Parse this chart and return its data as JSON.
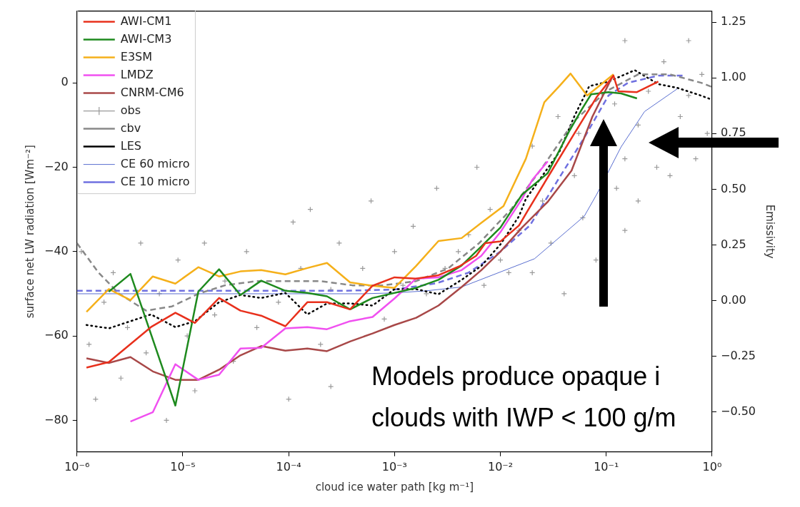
{
  "chart_data": {
    "type": "line",
    "xlabel": "cloud ice water path [kg m⁻¹]",
    "ylabel": "surface net LW radiation [Wm⁻²]",
    "y2label": "Emissivity",
    "log": "x",
    "grid": false,
    "legend": "top left",
    "xlim": [
      1e-06,
      1
    ],
    "xticks": [
      {
        "value": 1e-06,
        "label": "10⁻⁶"
      },
      {
        "value": 1e-05,
        "label": "10⁻⁵"
      },
      {
        "value": 0.0001,
        "label": "10⁻⁴"
      },
      {
        "value": 0.001,
        "label": "10⁻³"
      },
      {
        "value": 0.01,
        "label": "10⁻²"
      },
      {
        "value": 0.1,
        "label": "10⁻¹"
      },
      {
        "value": 1,
        "label": "10⁰"
      }
    ],
    "ylim": [
      -87.5,
      17
    ],
    "yticks": [
      {
        "value": -80,
        "label": "−80"
      },
      {
        "value": -60,
        "label": "−60"
      },
      {
        "value": -40,
        "label": "−40"
      },
      {
        "value": -20,
        "label": "−20"
      },
      0
    ],
    "y2lim": [
      -0.68,
      1.3
    ],
    "y2ticks": [
      {
        "value": -0.5,
        "label": "−0.50"
      },
      {
        "value": -0.25,
        "label": "−0.25"
      },
      {
        "value": 0,
        "label": "0.00"
      },
      {
        "value": 0.25,
        "label": "0.25"
      },
      {
        "value": 0.5,
        "label": "0.50"
      },
      {
        "value": 0.75,
        "label": "0.75"
      },
      {
        "value": 1,
        "label": "1.00"
      },
      {
        "value": 1.25,
        "label": "1.25"
      }
    ],
    "annotations": [
      "Models produce opaque i\nclouds with IWP < 100 g/m"
    ],
    "series": [
      {
        "name": "AWI-CM1",
        "color": "#e8301c",
        "type": "line",
        "line_style": "solid",
        "x": [
          1.23e-06,
          2e-06,
          5e-06,
          8.5e-06,
          1.3e-05,
          2.2e-05,
          3.5e-05,
          5.5e-05,
          9.3e-05,
          0.00015,
          0.00023,
          0.00038,
          0.00062,
          0.001,
          0.0016,
          0.0026,
          0.0041,
          0.0059,
          0.0072,
          0.01,
          0.015,
          0.018,
          0.032,
          0.05,
          0.081,
          0.117,
          0.13,
          0.195,
          0.31
        ],
        "values": [
          -67.5,
          -66.2,
          -57.9,
          -54.5,
          -56.9,
          -51.0,
          -54.0,
          -55.2,
          -57.7,
          -52.0,
          -52.0,
          -53.7,
          -48.1,
          -46.1,
          -46.4,
          -45.6,
          -43.5,
          -41.0,
          -38.0,
          -37.6,
          -33.8,
          -30.4,
          -20,
          -12,
          -3.4,
          1.7,
          -2.0,
          -2.2,
          0.3
        ]
      },
      {
        "name": "AWI-CM3",
        "color": "#1e8a1e",
        "type": "line",
        "line_style": "solid",
        "x": [
          2e-06,
          3.2e-06,
          8.5e-06,
          1.4e-05,
          2.2e-05,
          3.5e-05,
          5.5e-05,
          9.3e-05,
          0.00015,
          0.00023,
          0.00038,
          0.00062,
          0.0016,
          0.0026,
          0.0043,
          0.0066,
          0.01,
          0.016,
          0.028,
          0.045,
          0.059,
          0.072,
          0.105,
          0.138,
          0.195
        ],
        "values": [
          -49.5,
          -45.3,
          -76.5,
          -49.5,
          -44.2,
          -50.3,
          -46.9,
          -49.3,
          -49.8,
          -50.6,
          -53.7,
          -51.0,
          -48.6,
          -46.7,
          -43.3,
          -38.8,
          -34.3,
          -26.5,
          -21.4,
          -11.3,
          -6.2,
          -2.7,
          -2.2,
          -2.5,
          -3.7
        ]
      },
      {
        "name": "E3SM",
        "color": "#f5b01a",
        "type": "line",
        "line_style": "solid",
        "x": [
          1.23e-06,
          2e-06,
          3.2e-06,
          5.2e-06,
          8.5e-06,
          1.4e-05,
          2.2e-05,
          3.5e-05,
          5.5e-05,
          9.3e-05,
          0.00015,
          0.00023,
          0.00038,
          0.00062,
          0.001,
          0.0016,
          0.0026,
          0.0043,
          0.0066,
          0.0107,
          0.0174,
          0.026,
          0.036,
          0.046,
          0.066,
          0.085,
          0.117
        ],
        "values": [
          -54.3,
          -48.9,
          -51.5,
          -45.9,
          -47.6,
          -43.7,
          -45.9,
          -44.7,
          -44.4,
          -45.4,
          -43.9,
          -42.7,
          -47.3,
          -48.1,
          -48.6,
          -43.4,
          -37.5,
          -36.8,
          -33.2,
          -29.2,
          -18.0,
          -4.6,
          -0.8,
          2.2,
          -3.0,
          -0.8,
          2.0
        ]
      },
      {
        "name": "LMDZ",
        "color": "#f050f0",
        "type": "line",
        "line_style": "solid",
        "x": [
          3.2e-06,
          5.2e-06,
          8.5e-06,
          1.4e-05,
          2.2e-05,
          3.5e-05,
          5.5e-05,
          9.3e-05,
          0.00015,
          0.00023,
          0.00038,
          0.00062,
          0.001,
          0.0016,
          0.0026,
          0.0043,
          0.0066,
          0.01,
          0.016,
          0.02,
          0.028
        ],
        "values": [
          -80.3,
          -78.1,
          -66.7,
          -70.4,
          -69.2,
          -63.0,
          -62.8,
          -58.2,
          -57.9,
          -58.4,
          -56.5,
          -55.5,
          -51.1,
          -46.4,
          -46.1,
          -44.4,
          -41.0,
          -35.4,
          -27.5,
          -23,
          -18.6
        ]
      },
      {
        "name": "CNRM-CM6",
        "color": "#a84848",
        "type": "line",
        "line_style": "solid",
        "x": [
          1.23e-06,
          2e-06,
          3.2e-06,
          5.2e-06,
          8.5e-06,
          1.4e-05,
          2.2e-05,
          3.5e-05,
          5.5e-05,
          9.3e-05,
          0.00015,
          0.00023,
          0.00038,
          0.00062,
          0.001,
          0.0016,
          0.0026,
          0.0043,
          0.0066,
          0.01,
          0.016,
          0.028,
          0.047,
          0.074,
          0.117
        ],
        "values": [
          -65.3,
          -66.4,
          -65.0,
          -68.4,
          -70.4,
          -70.4,
          -68.0,
          -64.6,
          -62.4,
          -63.5,
          -63.0,
          -63.6,
          -61.3,
          -59.4,
          -57.4,
          -55.7,
          -52.8,
          -48.4,
          -44.4,
          -40.0,
          -34.3,
          -28.2,
          -20.8,
          -8,
          2.0
        ]
      },
      {
        "name": "obs",
        "color": "#999999",
        "type": "scatter",
        "marker": "cross",
        "x": [
          1.1e-06,
          1.3e-06,
          1.5e-06,
          1.8e-06,
          2.2e-06,
          2.6e-06,
          3e-06,
          4e-06,
          4.5e-06,
          6e-06,
          7e-06,
          9e-06,
          1.1e-05,
          1.3e-05,
          1.6e-05,
          2e-05,
          2.5e-05,
          3e-05,
          4e-05,
          5e-05,
          0.00011,
          8e-05,
          0.0001,
          0.00013,
          0.00016,
          0.0002,
          0.00025,
          0.0003,
          0.00025,
          0.0005,
          0.0006,
          0.0008,
          0.001,
          0.0012,
          0.0015,
          0.002,
          0.0025,
          0.003,
          0.004,
          0.005,
          0.006,
          0.007,
          0.008,
          0.01,
          0.012,
          0.015,
          0.02,
          0.02,
          0.025,
          0.03,
          0.035,
          0.04,
          0.05,
          0.06,
          0.055,
          0.08,
          0.125,
          0.12,
          0.15,
          0.15,
          0.2,
          0.2,
          0.25,
          0.3,
          0.35,
          0.4,
          0.5,
          0.6,
          0.7,
          0.8,
          0.9,
          0.15,
          0.6
        ],
        "values": [
          -40,
          -62,
          -75,
          -52,
          -45,
          -70,
          -58,
          -38,
          -64,
          -50,
          -80,
          -42,
          -60,
          -73,
          -38,
          -55,
          -47,
          -66,
          -40,
          -58,
          -33,
          -52,
          -75,
          -44,
          -30,
          -62,
          -49,
          -38,
          -72,
          -44,
          -28,
          -56,
          -40,
          -48,
          -34,
          -50,
          -25,
          -44,
          -40,
          -36,
          -20,
          -48,
          -30,
          -42,
          -45,
          -35,
          -15,
          -45,
          -28,
          -38,
          -8,
          -50,
          -22,
          -32,
          -12,
          -42,
          -25,
          -5,
          -18,
          -35,
          -10,
          -28,
          -2,
          -20,
          5,
          -22,
          -8,
          -3,
          -18,
          2,
          -12,
          10,
          10
        ]
      },
      {
        "name": "cbv",
        "color": "#888888",
        "type": "line",
        "line_style": "dashed",
        "x": [
          1e-06,
          1.6e-06,
          2.5e-06,
          4.5e-06,
          7.9e-06,
          1.4e-05,
          2.5e-05,
          5e-05,
          0.0001,
          0.0002,
          0.0004,
          0.00079,
          0.0016,
          0.0032,
          0.0063,
          0.0126,
          0.025,
          0.05,
          0.1,
          0.2,
          0.4,
          0.79,
          1.0
        ],
        "values": [
          -38,
          -45,
          -50,
          -54,
          -53,
          -50,
          -48,
          -47,
          -47,
          -47,
          -48,
          -48,
          -47,
          -44,
          -38,
          -30,
          -20,
          -9,
          -2,
          2,
          2,
          0,
          -1
        ]
      },
      {
        "name": "LES",
        "color": "#000000",
        "type": "line",
        "line_style": "dotted",
        "x": [
          1.23e-06,
          2e-06,
          3.2e-06,
          5e-06,
          8.5e-06,
          1.3e-05,
          2.2e-05,
          3.5e-05,
          5.5e-05,
          9.3e-05,
          0.00015,
          0.00023,
          0.00038,
          0.00062,
          0.001,
          0.0016,
          0.0026,
          0.0043,
          0.0066,
          0.01,
          0.015,
          0.0174,
          0.036,
          0.05,
          0.069,
          0.105,
          0.186,
          0.31,
          0.47,
          0.76,
          1.0
        ],
        "values": [
          -57.4,
          -58.2,
          -56.5,
          -54.9,
          -57.9,
          -56.5,
          -52.0,
          -50.3,
          -51.0,
          -49.8,
          -54.9,
          -52.3,
          -52.3,
          -52.8,
          -48.9,
          -48.9,
          -50.1,
          -46.7,
          -43.4,
          -38.3,
          -31.6,
          -27.5,
          -16.4,
          -7.9,
          -0.8,
          0.3,
          3.0,
          -0.3,
          -1.2,
          -2.9,
          -4
        ]
      },
      {
        "name": "CE 60 micro",
        "color": "#5a6fd0",
        "type": "line",
        "line_style": "solid",
        "x": [
          1e-06,
          0.0001,
          0.0005,
          0.001,
          0.002,
          0.0043,
          0.021,
          0.062,
          0.081,
          0.138,
          0.23,
          0.47
        ],
        "values": [
          -50,
          -50,
          -50,
          -49.8,
          -49.3,
          -48.4,
          -41.7,
          -31.6,
          -26.5,
          -15.2,
          -6.8,
          -1.4
        ]
      },
      {
        "name": "CE 10 micro",
        "color": "#6f70e0",
        "type": "line",
        "line_style": "dashed",
        "x": [
          1e-06,
          0.00032,
          0.001,
          0.0025,
          0.005,
          0.01,
          0.019,
          0.035,
          0.062,
          0.105,
          0.16,
          0.31,
          0.55
        ],
        "values": [
          -49.3,
          -49.3,
          -49,
          -47.5,
          -45,
          -40,
          -33.8,
          -23,
          -13,
          -3,
          0,
          1.7,
          1.7
        ]
      }
    ]
  }
}
